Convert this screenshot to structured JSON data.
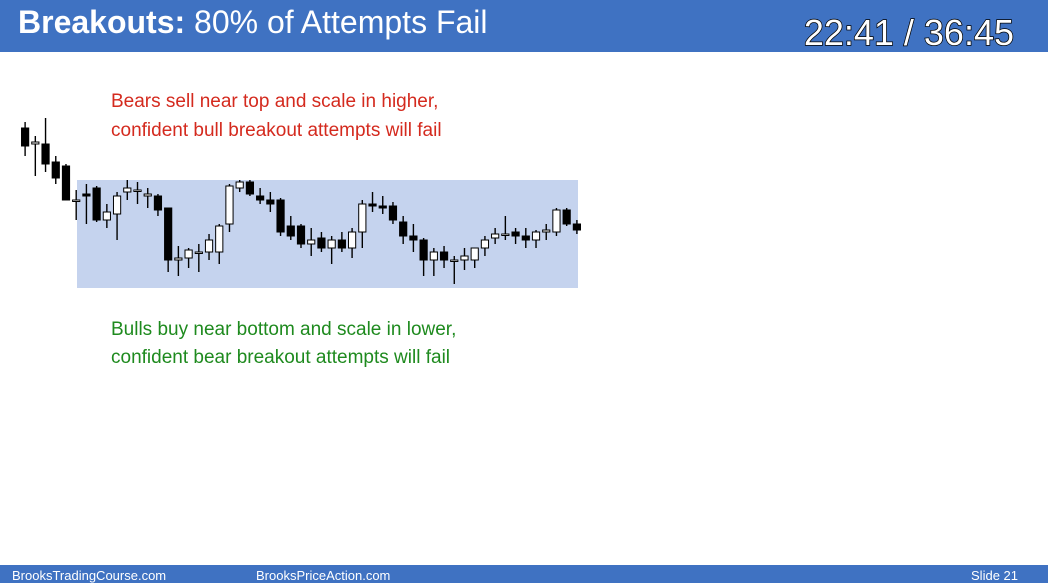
{
  "header": {
    "title_bold": "Breakouts:",
    "title_rest": "80% of Attempts Fail",
    "timer": "22:41 / 36:45"
  },
  "chart_data": {
    "type": "candlestick",
    "annotations": [
      "Bears sell near top and scale in higher,",
      "confident bull breakout attempts will fail",
      "Bulls buy near bottom and scale in lower,",
      "confident bear breakout attempts will fail"
    ],
    "ylim": [
      0,
      100
    ],
    "trading_range": [
      6,
      60
    ],
    "colors": {
      "up": "#ffffff",
      "down": "#000000",
      "range": "#c5d3ee"
    },
    "categories": [
      null,
      null,
      null,
      null,
      null,
      null,
      null,
      null,
      null,
      null,
      null,
      null,
      null,
      null,
      null,
      null,
      null,
      null,
      null,
      null,
      null,
      null,
      null,
      null,
      null,
      null,
      null,
      null,
      null,
      null,
      null,
      null,
      null,
      null,
      null,
      null,
      null,
      null,
      null,
      null,
      null,
      null,
      null,
      null,
      null,
      null,
      null,
      null,
      null,
      null,
      null,
      null,
      null,
      null,
      null
    ],
    "open": [
      86,
      78,
      78,
      69,
      67,
      50,
      53,
      56,
      40,
      43,
      54,
      55,
      52,
      52,
      46,
      20,
      21,
      24,
      24,
      24,
      38,
      56,
      59,
      52,
      50,
      50,
      37,
      37,
      28,
      31,
      26,
      30,
      26,
      34,
      48,
      47,
      47,
      39,
      32,
      30,
      20,
      24,
      20,
      20,
      20,
      26,
      31,
      33,
      34,
      32,
      30,
      34,
      34,
      45,
      38
    ],
    "high": [
      89,
      82,
      91,
      72,
      68,
      55,
      58,
      57,
      48,
      54,
      60,
      59,
      56,
      53,
      46,
      27,
      26,
      28,
      33,
      38,
      58,
      60,
      60,
      56,
      54,
      51,
      42,
      38,
      36,
      34,
      32,
      34,
      36,
      50,
      54,
      52,
      49,
      42,
      38,
      31,
      26,
      27,
      22,
      26,
      26,
      32,
      36,
      42,
      36,
      36,
      35,
      38,
      46,
      46,
      40
    ],
    "low": [
      72,
      62,
      64,
      58,
      50,
      40,
      38,
      39,
      36,
      30,
      50,
      48,
      46,
      42,
      14,
      12,
      16,
      14,
      20,
      18,
      34,
      54,
      52,
      48,
      44,
      32,
      30,
      26,
      22,
      24,
      18,
      24,
      21,
      26,
      44,
      43,
      38,
      28,
      24,
      12,
      12,
      16,
      8,
      15,
      16,
      22,
      28,
      30,
      28,
      26,
      26,
      30,
      32,
      37,
      33
    ],
    "close": [
      77,
      79,
      68,
      61,
      50,
      50,
      52,
      40,
      44,
      52,
      56,
      55,
      53,
      45,
      20,
      21,
      25,
      24,
      30,
      37,
      57,
      59,
      53,
      50,
      48,
      34,
      32,
      28,
      30,
      26,
      30,
      26,
      34,
      48,
      47,
      46,
      40,
      32,
      30,
      20,
      24,
      20,
      20,
      22,
      26,
      30,
      33,
      33,
      32,
      30,
      34,
      35,
      45,
      38,
      35
    ]
  },
  "footer": {
    "left": "BrooksTradingCourse.com",
    "middle": "BrooksPriceAction.com",
    "slide": "Slide 21"
  }
}
